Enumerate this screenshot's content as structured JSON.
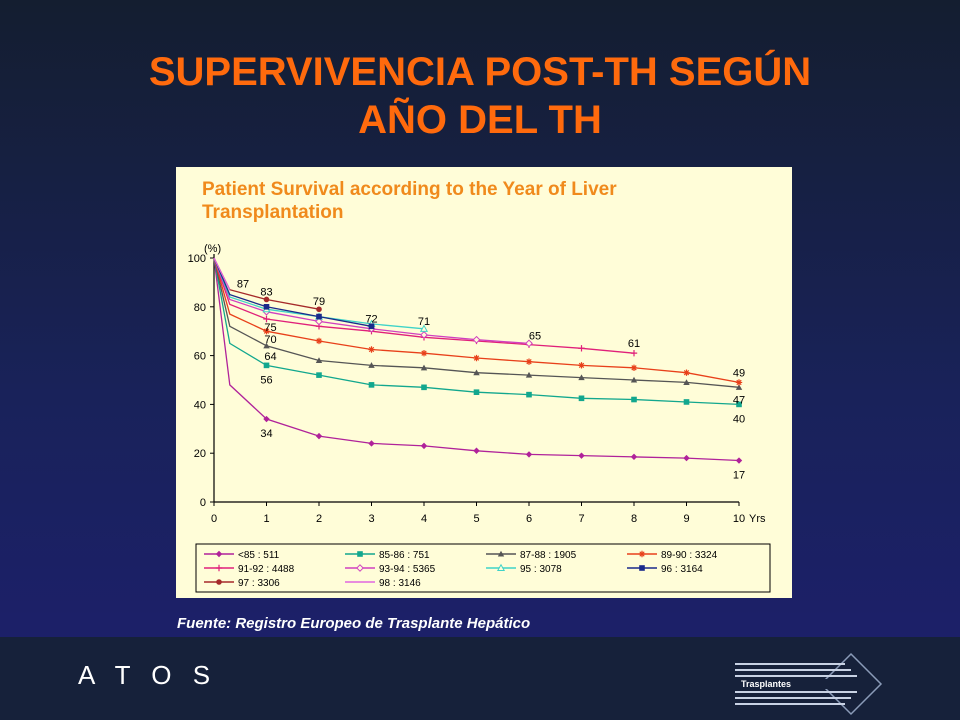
{
  "slide": {
    "title_line1": "SUPERVIVENCIA POST-TH SEGÚN",
    "title_line2": "AÑO DEL TH",
    "source": "Fuente: Registro Europeo de Trasplante Hepático",
    "brand": "A T O S",
    "logo_text": "Trasplantes"
  },
  "chart_data": {
    "type": "line",
    "title": "Patient Survival according to the Year of Liver Transplantation",
    "title_lines": [
      "Patient Survival according to the Year of Liver",
      "Transplantation"
    ],
    "xlabel": "Yrs",
    "ylabel": "(%)",
    "xlim": [
      0,
      10
    ],
    "ylim": [
      0,
      100
    ],
    "x_ticks": [
      0,
      1,
      2,
      3,
      4,
      5,
      6,
      7,
      8,
      9,
      10
    ],
    "y_ticks": [
      0,
      20,
      40,
      60,
      80,
      100
    ],
    "grid": false,
    "legend_position": "bottom",
    "series": [
      {
        "name": "<85 : 511",
        "color": "#b0229a",
        "marker": "diamond",
        "x": [
          0,
          0.3,
          1,
          2,
          3,
          4,
          5,
          6,
          7,
          8,
          9,
          10
        ],
        "y": [
          100,
          48,
          34,
          27,
          24,
          23,
          21,
          19.5,
          19,
          18.5,
          18,
          17
        ]
      },
      {
        "name": "85-86 : 751",
        "color": "#12a78e",
        "marker": "square",
        "x": [
          0,
          0.3,
          1,
          2,
          3,
          4,
          5,
          6,
          7,
          8,
          9,
          10
        ],
        "y": [
          100,
          65,
          56,
          52,
          48,
          47,
          45,
          44,
          42.5,
          42,
          41,
          40
        ]
      },
      {
        "name": "87-88 : 1905",
        "color": "#555555",
        "marker": "triangle",
        "x": [
          0,
          0.3,
          1,
          2,
          3,
          4,
          5,
          6,
          7,
          8,
          9,
          10
        ],
        "y": [
          100,
          72,
          64,
          58,
          56,
          55,
          53,
          52,
          51,
          50,
          49,
          47
        ]
      },
      {
        "name": "89-90 : 3324",
        "color": "#e8401a",
        "marker": "star",
        "x": [
          0,
          0.3,
          1,
          2,
          3,
          4,
          5,
          6,
          7,
          8,
          9,
          10
        ],
        "y": [
          100,
          77,
          70,
          66,
          62.5,
          61,
          59,
          57.5,
          56,
          55,
          53,
          49
        ]
      },
      {
        "name": "91-92 : 4488",
        "color": "#e0207a",
        "marker": "plus",
        "x": [
          0,
          0.3,
          1,
          2,
          3,
          4,
          5,
          6,
          7,
          8
        ],
        "y": [
          100,
          81,
          75,
          72,
          70,
          67.5,
          66,
          64.5,
          63,
          61
        ]
      },
      {
        "name": "93-94 : 5365",
        "color": "#d040c0",
        "marker": "diamond-open",
        "x": [
          0,
          0.3,
          1,
          2,
          3,
          4,
          5,
          6
        ],
        "y": [
          100,
          83,
          78,
          74,
          71,
          68.5,
          66.5,
          65
        ]
      },
      {
        "name": "95 : 3078",
        "color": "#3fd3c8",
        "marker": "triangle-open",
        "x": [
          0,
          0.3,
          1,
          2,
          3,
          4
        ],
        "y": [
          100,
          84,
          79,
          76,
          73,
          71
        ]
      },
      {
        "name": "96 : 3164",
        "color": "#1a2a8a",
        "marker": "square",
        "x": [
          0,
          0.3,
          1,
          2,
          3
        ],
        "y": [
          100,
          85,
          80,
          76,
          72
        ]
      },
      {
        "name": "97 : 3306",
        "color": "#a52a2a",
        "marker": "circle",
        "x": [
          0,
          0.3,
          1,
          2
        ],
        "y": [
          100,
          87,
          83,
          79
        ]
      },
      {
        "name": "98 : 3146",
        "color": "#e066e0",
        "marker": "none",
        "x": [
          0,
          0.3
        ],
        "y": [
          100,
          87
        ]
      }
    ],
    "annotations": [
      {
        "text": "87",
        "x": 0.4,
        "y": 87
      },
      {
        "text": "83",
        "x": 1,
        "y": 83
      },
      {
        "text": "79",
        "x": 2,
        "y": 79
      },
      {
        "text": "72",
        "x": 3,
        "y": 72
      },
      {
        "text": "71",
        "x": 4,
        "y": 71
      },
      {
        "text": "65",
        "x": 6,
        "y": 65
      },
      {
        "text": "61",
        "x": 8,
        "y": 61
      },
      {
        "text": "75",
        "x": 1,
        "y": 75
      },
      {
        "text": "70",
        "x": 1,
        "y": 70
      },
      {
        "text": "64",
        "x": 1,
        "y": 64
      },
      {
        "text": "56",
        "x": 1,
        "y": 56
      },
      {
        "text": "34",
        "x": 1,
        "y": 34
      },
      {
        "text": "49",
        "x": 10,
        "y": 49
      },
      {
        "text": "47",
        "x": 10,
        "y": 47
      },
      {
        "text": "40",
        "x": 10,
        "y": 40
      },
      {
        "text": "17",
        "x": 10,
        "y": 17
      }
    ]
  }
}
